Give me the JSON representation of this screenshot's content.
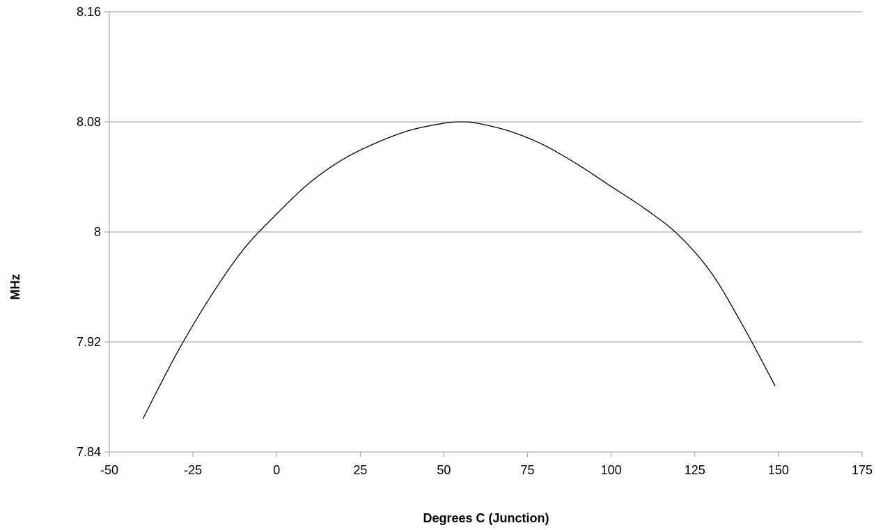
{
  "chart_data": {
    "type": "line",
    "xlabel": "Degrees C (Junction)",
    "ylabel": "MHz",
    "xlim": [
      -50,
      175
    ],
    "ylim": [
      7.84,
      8.16
    ],
    "x_ticks": [
      "-50",
      "-25",
      "0",
      "25",
      "50",
      "75",
      "100",
      "125",
      "150",
      "175"
    ],
    "y_ticks": [
      "8.16",
      "8.08",
      "8",
      "7.92",
      "7.84"
    ],
    "grid": "horizontal",
    "series": [
      {
        "x": [
          -40,
          -30,
          -20,
          -10,
          0,
          10,
          20,
          30,
          40,
          50,
          55,
          60,
          70,
          80,
          90,
          100,
          110,
          120,
          130,
          140,
          149
        ],
        "y": [
          7.864,
          7.911,
          7.952,
          7.987,
          8.013,
          8.036,
          8.053,
          8.065,
          8.074,
          8.079,
          8.08,
          8.079,
          8.073,
          8.063,
          8.049,
          8.033,
          8.017,
          7.998,
          7.97,
          7.929,
          7.888
        ]
      }
    ],
    "colors": {
      "line": "#000000",
      "grid": "#999999",
      "axis": "#999999"
    }
  }
}
